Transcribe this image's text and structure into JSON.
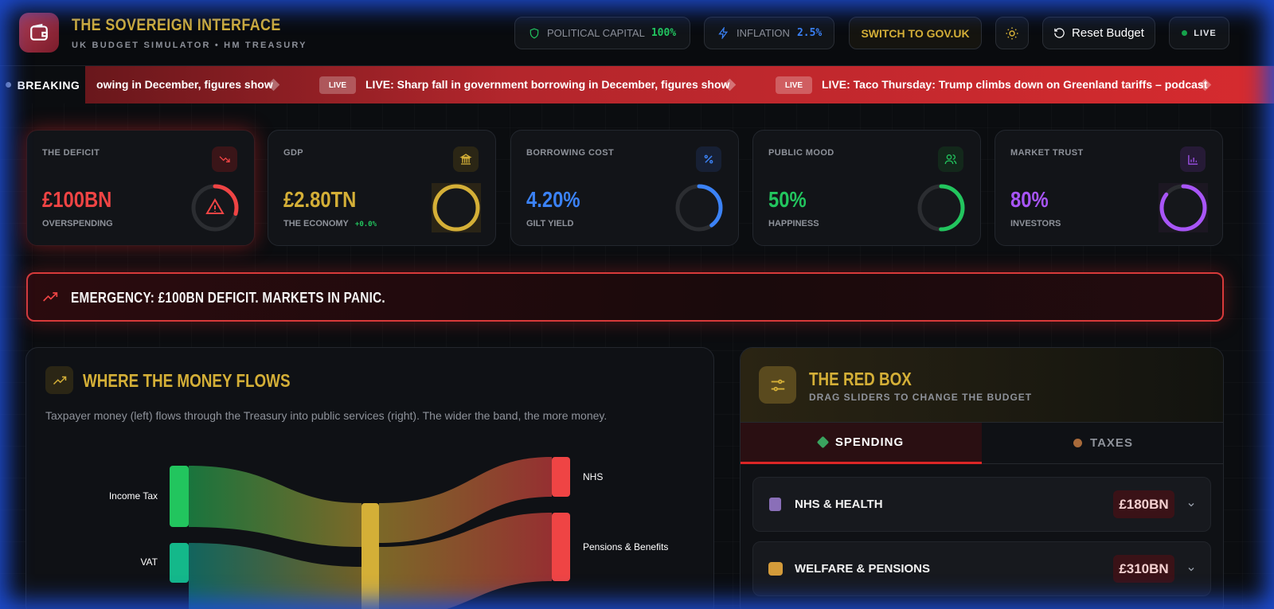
{
  "header": {
    "title": "THE SOVEREIGN INTERFACE",
    "subtitle": "UK BUDGET SIMULATOR • HM TREASURY"
  },
  "status": {
    "capital_label": "POLITICAL CAPITAL",
    "capital_value": "100%",
    "inflation_label": "INFLATION",
    "inflation_value": "2.5%",
    "switch": "SWITCH TO GOV.UK",
    "reset": "Reset Budget",
    "live": "LIVE"
  },
  "ticker": {
    "label": "BREAKING",
    "lead": "owing in December, figures show",
    "items": [
      {
        "badge": "LIVE",
        "text": "LIVE: Sharp fall in government borrowing in December, figures show"
      },
      {
        "badge": "LIVE",
        "text": "LIVE: Taco Thursday: Trump climbs down on Greenland tariffs – podcast"
      }
    ]
  },
  "cards": [
    {
      "label": "THE DEFICIT",
      "value": "£100BN",
      "sub": "OVERSPENDING"
    },
    {
      "label": "GDP",
      "value": "£2.80TN",
      "sub": "THE ECONOMY",
      "change": "+0.0%"
    },
    {
      "label": "BORROWING COST",
      "value": "4.20%",
      "sub": "GILT YIELD"
    },
    {
      "label": "PUBLIC MOOD",
      "value": "50%",
      "sub": "HAPPINESS"
    },
    {
      "label": "MARKET TRUST",
      "value": "80%",
      "sub": "INVESTORS"
    }
  ],
  "alert": "EMERGENCY: £100BN DEFICIT. MARKETS IN PANIC.",
  "flows": {
    "title": "WHERE THE MONEY FLOWS",
    "description": "Taxpayer money (left) flows through the Treasury into public services (right). The wider the band, the more money.",
    "nodes": [
      "Income Tax",
      "VAT",
      "NHS",
      "Pensions & Benefits"
    ]
  },
  "redbox": {
    "title": "THE RED BOX",
    "subtitle": "DRAG SLIDERS TO CHANGE THE BUDGET",
    "tabs": [
      "SPENDING",
      "TAXES"
    ],
    "items": [
      {
        "name": "NHS & HEALTH",
        "amount": "£180BN"
      },
      {
        "name": "WELFARE & PENSIONS",
        "amount": "£310BN"
      }
    ]
  }
}
